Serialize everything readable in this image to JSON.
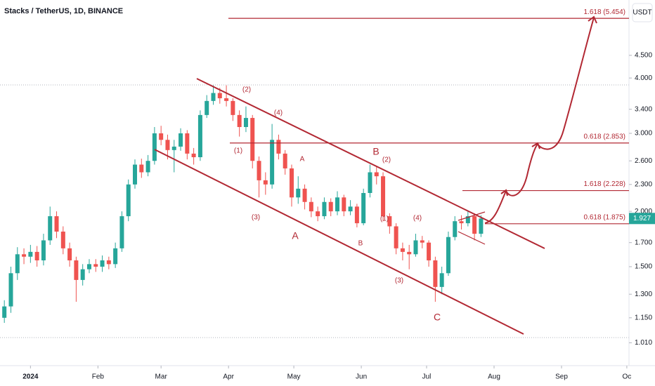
{
  "chart_data": {
    "type": "candlestick",
    "title": "Stacks / TetherUS, 1D, BINANCE",
    "currency_button": "USDT",
    "log_scale": true,
    "up_color": "#26a69a",
    "down_color": "#ef5350",
    "x": [
      -12,
      -9,
      -6,
      -3,
      0,
      3,
      6,
      9,
      12,
      15,
      18,
      21,
      24,
      27,
      30,
      33,
      36,
      39,
      42,
      45,
      48,
      51,
      54,
      57,
      60,
      63,
      66,
      69,
      72,
      75,
      78,
      81,
      84,
      87,
      90,
      93,
      96,
      99,
      102,
      105,
      108,
      111,
      114,
      117,
      120,
      123,
      126,
      129,
      132,
      135,
      138,
      141,
      144,
      147,
      150,
      153,
      156,
      159,
      162,
      165,
      168,
      171,
      174,
      177,
      180,
      183,
      186,
      189,
      192,
      195,
      198,
      201,
      204,
      207
    ],
    "open": [
      1.15,
      1.22,
      1.45,
      1.6,
      1.58,
      1.62,
      1.55,
      1.72,
      1.95,
      1.8,
      1.65,
      1.55,
      1.4,
      1.48,
      1.52,
      1.5,
      1.55,
      1.52,
      1.65,
      1.95,
      2.3,
      2.55,
      2.45,
      2.6,
      3.0,
      2.9,
      2.75,
      2.8,
      3.0,
      2.7,
      2.65,
      3.3,
      3.55,
      3.7,
      3.6,
      3.55,
      3.3,
      3.1,
      3.25,
      2.6,
      2.35,
      2.3,
      2.9,
      2.7,
      2.5,
      2.15,
      2.25,
      2.1,
      2.0,
      1.95,
      2.1,
      2.0,
      2.15,
      2.0,
      2.05,
      1.88,
      2.2,
      2.45,
      2.4,
      1.95,
      1.85,
      1.65,
      1.62,
      1.6,
      1.72,
      1.7,
      1.55,
      1.35,
      1.45,
      1.75,
      1.9,
      1.88,
      1.95,
      1.78
    ],
    "high": [
      1.26,
      1.5,
      1.66,
      1.65,
      1.68,
      1.67,
      1.78,
      2.05,
      2.0,
      1.85,
      1.7,
      1.58,
      1.52,
      1.56,
      1.56,
      1.59,
      1.58,
      1.7,
      2.0,
      2.36,
      2.62,
      2.63,
      2.68,
      3.1,
      3.12,
      2.98,
      2.9,
      3.08,
      3.05,
      2.78,
      3.38,
      3.66,
      3.85,
      3.8,
      3.85,
      3.6,
      3.38,
      3.45,
      3.3,
      2.66,
      2.45,
      3.15,
      2.98,
      2.75,
      2.55,
      2.4,
      2.3,
      2.15,
      2.05,
      2.15,
      2.14,
      2.22,
      2.18,
      2.12,
      2.08,
      2.25,
      2.55,
      2.52,
      2.45,
      1.98,
      1.88,
      1.7,
      1.68,
      1.78,
      1.76,
      1.72,
      1.58,
      1.5,
      1.8,
      1.95,
      1.96,
      2.0,
      1.98,
      1.96
    ],
    "low": [
      1.12,
      1.18,
      1.4,
      1.52,
      1.53,
      1.5,
      1.51,
      1.68,
      1.74,
      1.6,
      1.5,
      1.25,
      1.36,
      1.45,
      1.46,
      1.46,
      1.48,
      1.49,
      1.62,
      1.9,
      2.25,
      2.38,
      2.4,
      2.55,
      2.82,
      2.62,
      2.45,
      2.74,
      2.62,
      2.55,
      2.6,
      3.25,
      3.48,
      3.5,
      3.45,
      3.2,
      2.95,
      3.02,
      2.5,
      2.15,
      2.18,
      2.25,
      2.62,
      2.42,
      2.05,
      2.08,
      2.02,
      1.94,
      1.9,
      1.92,
      1.95,
      1.96,
      1.95,
      1.96,
      1.84,
      1.86,
      2.15,
      2.3,
      1.9,
      1.78,
      1.6,
      1.55,
      1.48,
      1.58,
      1.65,
      1.5,
      1.25,
      1.3,
      1.43,
      1.72,
      1.82,
      1.85,
      1.72,
      1.75
    ],
    "close": [
      1.22,
      1.45,
      1.6,
      1.58,
      1.62,
      1.55,
      1.72,
      1.95,
      1.8,
      1.65,
      1.55,
      1.4,
      1.48,
      1.52,
      1.5,
      1.55,
      1.52,
      1.65,
      1.95,
      2.3,
      2.55,
      2.45,
      2.6,
      3.0,
      2.9,
      2.75,
      2.8,
      3.0,
      2.7,
      2.65,
      3.3,
      3.55,
      3.7,
      3.6,
      3.55,
      3.3,
      3.1,
      3.25,
      2.6,
      2.35,
      2.3,
      2.9,
      2.7,
      2.5,
      2.15,
      2.25,
      2.1,
      2.0,
      1.95,
      2.1,
      2.0,
      2.15,
      2.0,
      2.05,
      1.88,
      2.2,
      2.45,
      2.4,
      1.95,
      1.85,
      1.65,
      1.62,
      1.6,
      1.72,
      1.7,
      1.55,
      1.35,
      1.45,
      1.75,
      1.9,
      1.88,
      1.95,
      1.78,
      1.927
    ],
    "xlim": [
      -14,
      275
    ],
    "xticks": [
      {
        "value": 0,
        "label": "2024"
      },
      {
        "value": 31,
        "label": "Feb"
      },
      {
        "value": 60,
        "label": "Mar"
      },
      {
        "value": 91,
        "label": "Apr"
      },
      {
        "value": 121,
        "label": "May"
      },
      {
        "value": 152,
        "label": "Jun"
      },
      {
        "value": 182,
        "label": "Jul"
      },
      {
        "value": 213,
        "label": "Aug"
      },
      {
        "value": 244,
        "label": "Sep"
      },
      {
        "value": 274,
        "label": "Oc"
      }
    ],
    "ylim": [
      0.9,
      6.0
    ],
    "yticks": [
      {
        "value": 1.01,
        "label": "1.010"
      },
      {
        "value": 1.15,
        "label": "1.150"
      },
      {
        "value": 1.3,
        "label": "1.300"
      },
      {
        "value": 1.5,
        "label": "1.500"
      },
      {
        "value": 1.7,
        "label": "1.700"
      },
      {
        "value": 2,
        "label": "2.000"
      },
      {
        "value": 2.3,
        "label": "2.300"
      },
      {
        "value": 2.6,
        "label": "2.600"
      },
      {
        "value": 3,
        "label": "3.000"
      },
      {
        "value": 3.4,
        "label": "3.400"
      },
      {
        "value": 4,
        "label": "4.000"
      },
      {
        "value": 4.5,
        "label": "4.500"
      }
    ],
    "fib_levels": [
      {
        "value": 5.454,
        "label": "1.618 (5.454)"
      },
      {
        "value": 2.853,
        "label": "0.618 (2.853)"
      },
      {
        "value": 2.228,
        "label": "1.618 (2.228)"
      },
      {
        "value": 1.875,
        "label": "0.618 (1.875)"
      }
    ],
    "wave_labels": [
      "(2)",
      "(4)",
      "(1)",
      "A",
      "(3)",
      "A",
      "B",
      "(2)",
      "(1)",
      "(4)",
      "B",
      "(3)",
      "C"
    ]
  }
}
